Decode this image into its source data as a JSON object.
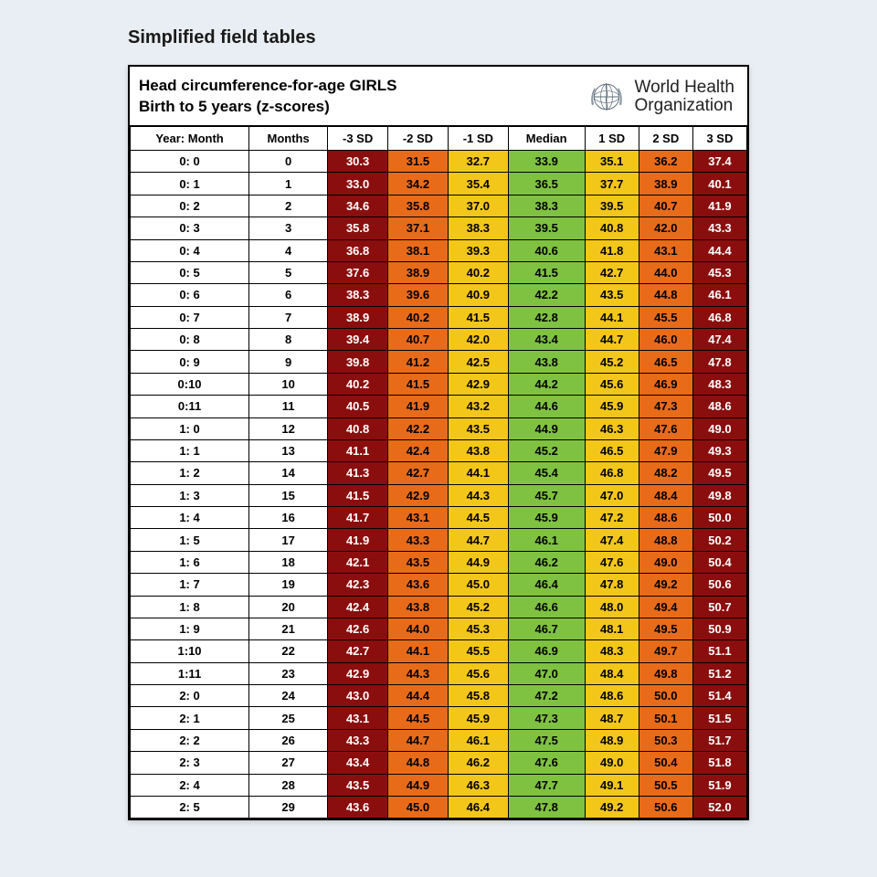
{
  "page_heading": "Simplified field tables",
  "header": {
    "title_line1": "Head circumference-for-age GIRLS",
    "title_line2": "Birth to 5 years (z-scores)",
    "org_line1": "World Health",
    "org_line2": "Organization"
  },
  "columns": [
    "Year: Month",
    "Months",
    "-3 SD",
    "-2 SD",
    "-1 SD",
    "Median",
    "1 SD",
    "2 SD",
    "3 SD"
  ],
  "column_colors": {
    "year_month": "#ffffff",
    "months": "#ffffff",
    "neg3sd": "#8b0e0e",
    "neg2sd": "#e86b1a",
    "neg1sd": "#f3c71a",
    "median": "#7fc241",
    "pos1sd": "#f3c71a",
    "pos2sd": "#e86b1a",
    "pos3sd": "#8b0e0e"
  },
  "text_colors": {
    "darkred": "#ffffff",
    "orange": "#000000",
    "yellow": "#000000",
    "green": "#000000",
    "white": "#000000"
  },
  "rows": [
    {
      "ym": "0: 0",
      "m": "0",
      "v": [
        "30.3",
        "31.5",
        "32.7",
        "33.9",
        "35.1",
        "36.2",
        "37.4"
      ]
    },
    {
      "ym": "0: 1",
      "m": "1",
      "v": [
        "33.0",
        "34.2",
        "35.4",
        "36.5",
        "37.7",
        "38.9",
        "40.1"
      ]
    },
    {
      "ym": "0: 2",
      "m": "2",
      "v": [
        "34.6",
        "35.8",
        "37.0",
        "38.3",
        "39.5",
        "40.7",
        "41.9"
      ]
    },
    {
      "ym": "0: 3",
      "m": "3",
      "v": [
        "35.8",
        "37.1",
        "38.3",
        "39.5",
        "40.8",
        "42.0",
        "43.3"
      ]
    },
    {
      "ym": "0: 4",
      "m": "4",
      "v": [
        "36.8",
        "38.1",
        "39.3",
        "40.6",
        "41.8",
        "43.1",
        "44.4"
      ]
    },
    {
      "ym": "0: 5",
      "m": "5",
      "v": [
        "37.6",
        "38.9",
        "40.2",
        "41.5",
        "42.7",
        "44.0",
        "45.3"
      ]
    },
    {
      "ym": "0: 6",
      "m": "6",
      "v": [
        "38.3",
        "39.6",
        "40.9",
        "42.2",
        "43.5",
        "44.8",
        "46.1"
      ]
    },
    {
      "ym": "0: 7",
      "m": "7",
      "v": [
        "38.9",
        "40.2",
        "41.5",
        "42.8",
        "44.1",
        "45.5",
        "46.8"
      ]
    },
    {
      "ym": "0: 8",
      "m": "8",
      "v": [
        "39.4",
        "40.7",
        "42.0",
        "43.4",
        "44.7",
        "46.0",
        "47.4"
      ]
    },
    {
      "ym": "0: 9",
      "m": "9",
      "v": [
        "39.8",
        "41.2",
        "42.5",
        "43.8",
        "45.2",
        "46.5",
        "47.8"
      ]
    },
    {
      "ym": "0:10",
      "m": "10",
      "v": [
        "40.2",
        "41.5",
        "42.9",
        "44.2",
        "45.6",
        "46.9",
        "48.3"
      ]
    },
    {
      "ym": "0:11",
      "m": "11",
      "v": [
        "40.5",
        "41.9",
        "43.2",
        "44.6",
        "45.9",
        "47.3",
        "48.6"
      ]
    },
    {
      "ym": "1: 0",
      "m": "12",
      "v": [
        "40.8",
        "42.2",
        "43.5",
        "44.9",
        "46.3",
        "47.6",
        "49.0"
      ]
    },
    {
      "ym": "1: 1",
      "m": "13",
      "v": [
        "41.1",
        "42.4",
        "43.8",
        "45.2",
        "46.5",
        "47.9",
        "49.3"
      ]
    },
    {
      "ym": "1: 2",
      "m": "14",
      "v": [
        "41.3",
        "42.7",
        "44.1",
        "45.4",
        "46.8",
        "48.2",
        "49.5"
      ]
    },
    {
      "ym": "1: 3",
      "m": "15",
      "v": [
        "41.5",
        "42.9",
        "44.3",
        "45.7",
        "47.0",
        "48.4",
        "49.8"
      ]
    },
    {
      "ym": "1: 4",
      "m": "16",
      "v": [
        "41.7",
        "43.1",
        "44.5",
        "45.9",
        "47.2",
        "48.6",
        "50.0"
      ]
    },
    {
      "ym": "1: 5",
      "m": "17",
      "v": [
        "41.9",
        "43.3",
        "44.7",
        "46.1",
        "47.4",
        "48.8",
        "50.2"
      ]
    },
    {
      "ym": "1: 6",
      "m": "18",
      "v": [
        "42.1",
        "43.5",
        "44.9",
        "46.2",
        "47.6",
        "49.0",
        "50.4"
      ]
    },
    {
      "ym": "1: 7",
      "m": "19",
      "v": [
        "42.3",
        "43.6",
        "45.0",
        "46.4",
        "47.8",
        "49.2",
        "50.6"
      ]
    },
    {
      "ym": "1: 8",
      "m": "20",
      "v": [
        "42.4",
        "43.8",
        "45.2",
        "46.6",
        "48.0",
        "49.4",
        "50.7"
      ]
    },
    {
      "ym": "1: 9",
      "m": "21",
      "v": [
        "42.6",
        "44.0",
        "45.3",
        "46.7",
        "48.1",
        "49.5",
        "50.9"
      ]
    },
    {
      "ym": "1:10",
      "m": "22",
      "v": [
        "42.7",
        "44.1",
        "45.5",
        "46.9",
        "48.3",
        "49.7",
        "51.1"
      ]
    },
    {
      "ym": "1:11",
      "m": "23",
      "v": [
        "42.9",
        "44.3",
        "45.6",
        "47.0",
        "48.4",
        "49.8",
        "51.2"
      ]
    },
    {
      "ym": "2: 0",
      "m": "24",
      "v": [
        "43.0",
        "44.4",
        "45.8",
        "47.2",
        "48.6",
        "50.0",
        "51.4"
      ]
    },
    {
      "ym": "2: 1",
      "m": "25",
      "v": [
        "43.1",
        "44.5",
        "45.9",
        "47.3",
        "48.7",
        "50.1",
        "51.5"
      ]
    },
    {
      "ym": "2: 2",
      "m": "26",
      "v": [
        "43.3",
        "44.7",
        "46.1",
        "47.5",
        "48.9",
        "50.3",
        "51.7"
      ]
    },
    {
      "ym": "2: 3",
      "m": "27",
      "v": [
        "43.4",
        "44.8",
        "46.2",
        "47.6",
        "49.0",
        "50.4",
        "51.8"
      ]
    },
    {
      "ym": "2: 4",
      "m": "28",
      "v": [
        "43.5",
        "44.9",
        "46.3",
        "47.7",
        "49.1",
        "50.5",
        "51.9"
      ]
    },
    {
      "ym": "2: 5",
      "m": "29",
      "v": [
        "43.6",
        "45.0",
        "46.4",
        "47.8",
        "49.2",
        "50.6",
        "52.0"
      ]
    }
  ]
}
